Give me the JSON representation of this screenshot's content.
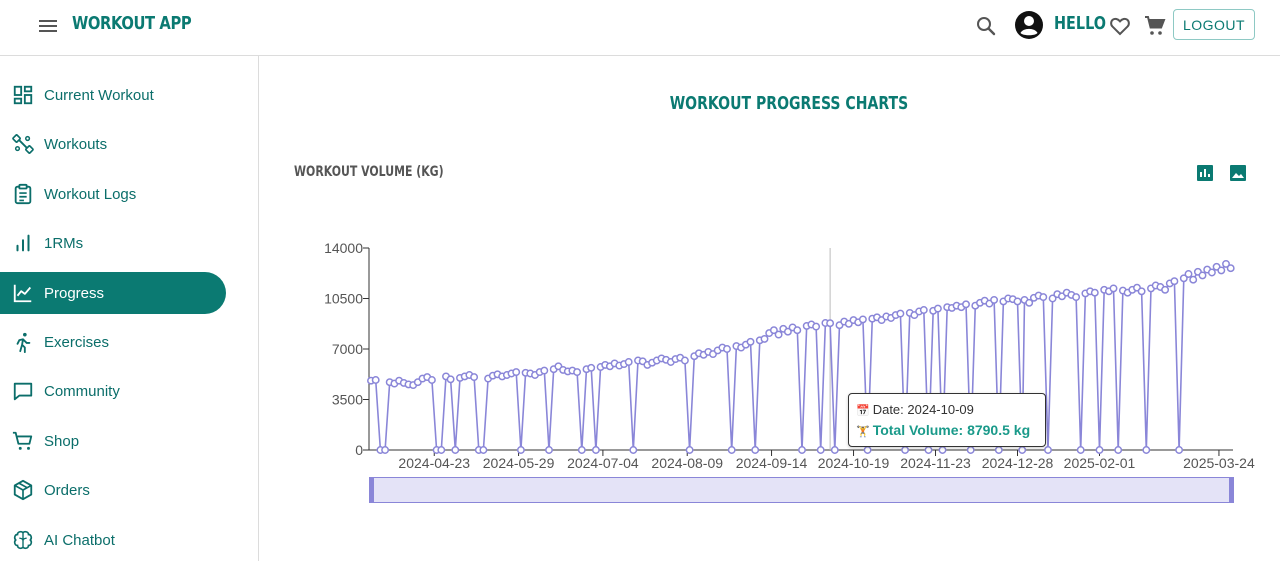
{
  "header": {
    "app_title": "WORKOUT APP",
    "greeting": "HELLO",
    "logout_label": "LOGOUT",
    "icons": [
      "menu-icon",
      "search-icon",
      "account-icon",
      "heart-icon",
      "cart-icon"
    ]
  },
  "sidebar": {
    "items": [
      {
        "label": "Current Workout",
        "icon": "dashboard-icon"
      },
      {
        "label": "Workouts",
        "icon": "dumbbell-icon"
      },
      {
        "label": "Workout Logs",
        "icon": "clipboard-icon"
      },
      {
        "label": "1RMs",
        "icon": "bar-signal-icon"
      },
      {
        "label": "Progress",
        "icon": "line-chart-icon",
        "active": true
      },
      {
        "label": "Exercises",
        "icon": "running-icon"
      },
      {
        "label": "Community",
        "icon": "chat-icon"
      },
      {
        "label": "Shop",
        "icon": "shopping-cart-icon"
      },
      {
        "label": "Orders",
        "icon": "package-icon"
      },
      {
        "label": "AI Chatbot",
        "icon": "brain-icon"
      }
    ]
  },
  "main": {
    "title": "WORKOUT PROGRESS CHARTS",
    "chart_title": "WORKOUT VOLUME (KG)",
    "chart_buttons": [
      "bar-chart-icon",
      "image-icon"
    ]
  },
  "tooltip": {
    "date_label": "Date: 2024-10-09",
    "volume_label": "Total Volume: 8790.5 kg",
    "date_emoji": "📅",
    "volume_emoji": "🏋"
  },
  "colors": {
    "brand": "#0b7a72",
    "series": "#8a86d8",
    "zoom_fill": "#e4e3f7",
    "active_nav_bg": "#0b7a72"
  },
  "chart_data": {
    "type": "line",
    "title": "WORKOUT VOLUME (KG)",
    "xlabel": "",
    "ylabel": "",
    "yticks": [
      0,
      3500,
      7000,
      10500,
      14000
    ],
    "ylim": [
      0,
      14000
    ],
    "xticks": [
      "2024-04-23",
      "2024-05-29",
      "2024-07-04",
      "2024-08-09",
      "2024-09-14",
      "2024-10-19",
      "2024-11-23",
      "2024-12-28",
      "2025-02-01",
      "2025-03-24"
    ],
    "xrange": [
      "2024-03-27",
      "2025-03-30"
    ],
    "highlight": {
      "date": "2024-10-09",
      "value": 8790.5
    },
    "series": [
      {
        "points": [
          [
            "2024-03-27",
            4800
          ],
          [
            "2024-03-29",
            4850
          ],
          [
            "2024-03-31",
            0
          ],
          [
            "2024-04-02",
            0
          ],
          [
            "2024-04-04",
            4700
          ],
          [
            "2024-04-06",
            4600
          ],
          [
            "2024-04-08",
            4800
          ],
          [
            "2024-04-10",
            4650
          ],
          [
            "2024-04-12",
            4550
          ],
          [
            "2024-04-14",
            4500
          ],
          [
            "2024-04-16",
            4700
          ],
          [
            "2024-04-18",
            4950
          ],
          [
            "2024-04-20",
            5050
          ],
          [
            "2024-04-22",
            4850
          ],
          [
            "2024-04-24",
            0
          ],
          [
            "2024-04-26",
            0
          ],
          [
            "2024-04-28",
            5100
          ],
          [
            "2024-04-30",
            4900
          ],
          [
            "2024-05-02",
            0
          ],
          [
            "2024-05-04",
            5000
          ],
          [
            "2024-05-06",
            5100
          ],
          [
            "2024-05-08",
            5200
          ],
          [
            "2024-05-10",
            5050
          ],
          [
            "2024-05-12",
            0
          ],
          [
            "2024-05-14",
            0
          ],
          [
            "2024-05-16",
            4950
          ],
          [
            "2024-05-18",
            5150
          ],
          [
            "2024-05-20",
            5250
          ],
          [
            "2024-05-22",
            5100
          ],
          [
            "2024-05-24",
            5200
          ],
          [
            "2024-05-26",
            5300
          ],
          [
            "2024-05-28",
            5400
          ],
          [
            "2024-05-30",
            0
          ],
          [
            "2024-06-01",
            5350
          ],
          [
            "2024-06-03",
            5300
          ],
          [
            "2024-06-05",
            5200
          ],
          [
            "2024-06-07",
            5400
          ],
          [
            "2024-06-09",
            5500
          ],
          [
            "2024-06-11",
            0
          ],
          [
            "2024-06-13",
            5600
          ],
          [
            "2024-06-15",
            5800
          ],
          [
            "2024-06-17",
            5550
          ],
          [
            "2024-06-19",
            5450
          ],
          [
            "2024-06-21",
            5500
          ],
          [
            "2024-06-23",
            5400
          ],
          [
            "2024-06-25",
            0
          ],
          [
            "2024-06-27",
            5600
          ],
          [
            "2024-06-29",
            5700
          ],
          [
            "2024-07-01",
            0
          ],
          [
            "2024-07-03",
            5750
          ],
          [
            "2024-07-05",
            5900
          ],
          [
            "2024-07-07",
            5800
          ],
          [
            "2024-07-09",
            6000
          ],
          [
            "2024-07-11",
            5850
          ],
          [
            "2024-07-13",
            5950
          ],
          [
            "2024-07-15",
            6100
          ],
          [
            "2024-07-17",
            0
          ],
          [
            "2024-07-19",
            6200
          ],
          [
            "2024-07-21",
            6150
          ],
          [
            "2024-07-23",
            5900
          ],
          [
            "2024-07-25",
            6050
          ],
          [
            "2024-07-27",
            6200
          ],
          [
            "2024-07-29",
            6350
          ],
          [
            "2024-07-31",
            6250
          ],
          [
            "2024-08-02",
            6100
          ],
          [
            "2024-08-04",
            6300
          ],
          [
            "2024-08-06",
            6400
          ],
          [
            "2024-08-08",
            6200
          ],
          [
            "2024-08-10",
            0
          ],
          [
            "2024-08-12",
            6500
          ],
          [
            "2024-08-14",
            6700
          ],
          [
            "2024-08-16",
            6600
          ],
          [
            "2024-08-18",
            6800
          ],
          [
            "2024-08-20",
            6650
          ],
          [
            "2024-08-22",
            6900
          ],
          [
            "2024-08-24",
            7100
          ],
          [
            "2024-08-26",
            7000
          ],
          [
            "2024-08-28",
            0
          ],
          [
            "2024-08-30",
            7200
          ],
          [
            "2024-09-01",
            7100
          ],
          [
            "2024-09-03",
            7300
          ],
          [
            "2024-09-05",
            7500
          ],
          [
            "2024-09-07",
            0
          ],
          [
            "2024-09-09",
            7600
          ],
          [
            "2024-09-11",
            7700
          ],
          [
            "2024-09-13",
            8100
          ],
          [
            "2024-09-15",
            8300
          ],
          [
            "2024-09-17",
            8000
          ],
          [
            "2024-09-19",
            8400
          ],
          [
            "2024-09-21",
            8200
          ],
          [
            "2024-09-23",
            8500
          ],
          [
            "2024-09-25",
            8300
          ],
          [
            "2024-09-27",
            0
          ],
          [
            "2024-09-29",
            8600
          ],
          [
            "2024-10-01",
            8700
          ],
          [
            "2024-10-03",
            8550
          ],
          [
            "2024-10-05",
            0
          ],
          [
            "2024-10-07",
            8800
          ],
          [
            "2024-10-09",
            8790.5
          ],
          [
            "2024-10-11",
            0
          ],
          [
            "2024-10-13",
            8650
          ],
          [
            "2024-10-15",
            8900
          ],
          [
            "2024-10-17",
            8750
          ],
          [
            "2024-10-19",
            9000
          ],
          [
            "2024-10-21",
            8850
          ],
          [
            "2024-10-23",
            9050
          ],
          [
            "2024-10-25",
            0
          ],
          [
            "2024-10-27",
            9100
          ],
          [
            "2024-10-29",
            9200
          ],
          [
            "2024-10-31",
            9000
          ],
          [
            "2024-11-02",
            9250
          ],
          [
            "2024-11-04",
            9150
          ],
          [
            "2024-11-06",
            9350
          ],
          [
            "2024-11-08",
            9450
          ],
          [
            "2024-11-10",
            0
          ],
          [
            "2024-11-12",
            9500
          ],
          [
            "2024-11-14",
            9350
          ],
          [
            "2024-11-16",
            9600
          ],
          [
            "2024-11-18",
            9700
          ],
          [
            "2024-11-20",
            0
          ],
          [
            "2024-11-22",
            9650
          ],
          [
            "2024-11-24",
            9800
          ],
          [
            "2024-11-26",
            0
          ],
          [
            "2024-11-28",
            9900
          ],
          [
            "2024-11-30",
            9850
          ],
          [
            "2024-12-02",
            10000
          ],
          [
            "2024-12-04",
            9900
          ],
          [
            "2024-12-06",
            10100
          ],
          [
            "2024-12-08",
            0
          ],
          [
            "2024-12-10",
            10000
          ],
          [
            "2024-12-12",
            10200
          ],
          [
            "2024-12-14",
            10350
          ],
          [
            "2024-12-16",
            10150
          ],
          [
            "2024-12-18",
            10400
          ],
          [
            "2024-12-20",
            0
          ],
          [
            "2024-12-22",
            10300
          ],
          [
            "2024-12-24",
            10500
          ],
          [
            "2024-12-26",
            10450
          ],
          [
            "2024-12-28",
            10300
          ],
          [
            "2024-12-30",
            0
          ],
          [
            "2024-12-31",
            10400
          ],
          [
            "2025-01-02",
            10200
          ],
          [
            "2025-01-04",
            10550
          ],
          [
            "2025-01-06",
            10700
          ],
          [
            "2025-01-08",
            10600
          ],
          [
            "2025-01-10",
            0
          ],
          [
            "2025-01-12",
            10500
          ],
          [
            "2025-01-14",
            10800
          ],
          [
            "2025-01-16",
            10650
          ],
          [
            "2025-01-18",
            10900
          ],
          [
            "2025-01-20",
            10750
          ],
          [
            "2025-01-22",
            10600
          ],
          [
            "2025-01-24",
            0
          ],
          [
            "2025-01-26",
            10850
          ],
          [
            "2025-01-28",
            11000
          ],
          [
            "2025-01-30",
            10900
          ],
          [
            "2025-02-01",
            0
          ],
          [
            "2025-02-03",
            11100
          ],
          [
            "2025-02-05",
            11000
          ],
          [
            "2025-02-07",
            11200
          ],
          [
            "2025-02-09",
            0
          ],
          [
            "2025-02-11",
            11050
          ],
          [
            "2025-02-13",
            10900
          ],
          [
            "2025-02-15",
            11100
          ],
          [
            "2025-02-17",
            11250
          ],
          [
            "2025-02-19",
            11000
          ],
          [
            "2025-02-21",
            0
          ],
          [
            "2025-02-23",
            11200
          ],
          [
            "2025-02-25",
            11400
          ],
          [
            "2025-02-27",
            11300
          ],
          [
            "2025-03-01",
            11100
          ],
          [
            "2025-03-03",
            11550
          ],
          [
            "2025-03-05",
            11700
          ],
          [
            "2025-03-07",
            0
          ],
          [
            "2025-03-09",
            11900
          ],
          [
            "2025-03-11",
            12200
          ],
          [
            "2025-03-13",
            11800
          ],
          [
            "2025-03-15",
            12350
          ],
          [
            "2025-03-17",
            12100
          ],
          [
            "2025-03-19",
            12500
          ],
          [
            "2025-03-21",
            12300
          ],
          [
            "2025-03-23",
            12700
          ],
          [
            "2025-03-25",
            12450
          ],
          [
            "2025-03-27",
            12900
          ],
          [
            "2025-03-29",
            12600
          ]
        ]
      }
    ]
  }
}
